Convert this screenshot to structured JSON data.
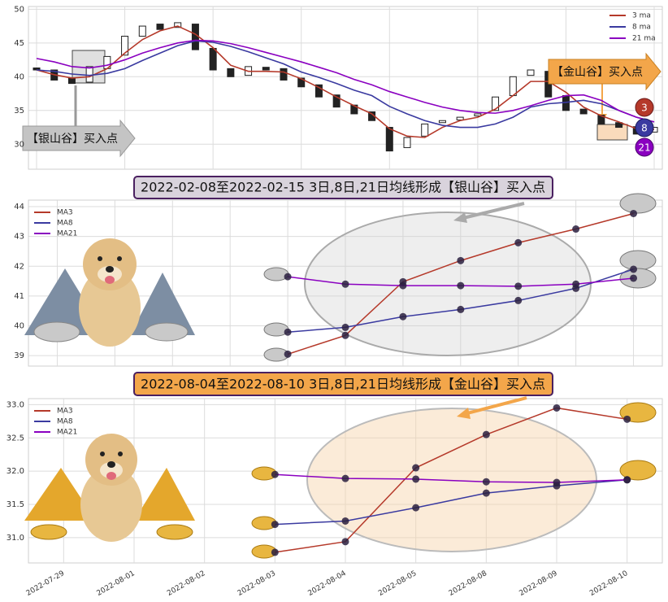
{
  "chart_data": [
    {
      "type": "candlestick",
      "open": [
        41.3,
        41,
        39.8,
        39.2,
        41.2,
        43.2,
        46,
        47.8,
        47.3,
        47.8,
        44.2,
        41.2,
        40.2,
        41.4,
        41.2,
        39.8,
        38.8,
        37.3,
        35.8,
        34.8,
        32.5,
        29.5,
        31.2,
        33.2,
        33.6,
        34.2,
        35,
        37.2,
        40.2,
        40.8,
        37.2,
        35.2,
        34.3,
        33.2,
        32.6,
        31.8
      ],
      "close": [
        41,
        39.5,
        39,
        41.5,
        43,
        46,
        47.5,
        47,
        48,
        44,
        41,
        40,
        41.5,
        41,
        39.5,
        38.5,
        37,
        35.5,
        34.5,
        33.5,
        29,
        31,
        33,
        33.5,
        34,
        34.5,
        37,
        40,
        41,
        37,
        35,
        34.5,
        33,
        32.5,
        31.5,
        32.5
      ],
      "series": [
        {
          "name": "3 ma",
          "color": "#b5392a",
          "values": [
            41,
            40.3,
            39.8,
            40,
            41.2,
            43.5,
            45.5,
            46.8,
            47.5,
            46.3,
            44.3,
            41.7,
            40.8,
            40.8,
            40.7,
            39.7,
            38.4,
            37,
            35.7,
            34.5,
            32.3,
            31.2,
            31,
            32.5,
            33.5,
            34,
            35.2,
            37.2,
            39.3,
            39.3,
            37.7,
            35.5,
            34.2,
            33.3,
            32.3,
            32.2
          ]
        },
        {
          "name": "8 ma",
          "color": "#3a3aa0",
          "values": [
            41,
            40.8,
            40.4,
            40.2,
            40.5,
            41.2,
            42.4,
            43.5,
            44.6,
            45.3,
            45.1,
            44.5,
            43.7,
            42.8,
            41.9,
            40.7,
            39.9,
            39,
            38,
            37.2,
            35.6,
            34.5,
            33.5,
            32.8,
            32.5,
            32.5,
            33,
            34,
            35.5,
            36,
            36.2,
            36.5,
            36,
            35,
            34,
            33.3
          ]
        },
        {
          "name": "21 ma",
          "color": "#8a00c0",
          "values": [
            42.7,
            42.2,
            41.5,
            41.3,
            41.7,
            42.5,
            43.5,
            44.3,
            45,
            45.4,
            45.3,
            44.9,
            44.3,
            43.6,
            42.9,
            42.2,
            41.4,
            40.6,
            39.6,
            38.8,
            37.8,
            37,
            36.2,
            35.5,
            35,
            34.7,
            34.6,
            35,
            35.7,
            36.5,
            37.2,
            37.3,
            36.5,
            35,
            34,
            33.3
          ]
        }
      ],
      "up_color": "#ffffff",
      "down_color": "#222222",
      "ylim": [
        26.3,
        50.4
      ],
      "yticks": [
        30,
        35,
        40,
        45,
        50
      ],
      "grid": true,
      "annotations": [
        "【银山谷】买入点",
        "【金山谷】买入点"
      ],
      "badges": [
        "3",
        "8",
        "21"
      ]
    },
    {
      "type": "line",
      "title": "2022-02-08至2022-02-15 3日,8日,21日均线形成【银山谷】买入点",
      "categories": [
        null,
        null,
        null,
        null,
        null,
        null,
        null,
        null,
        null,
        null,
        null
      ],
      "series": [
        {
          "name": "MA3",
          "color": "#b5392a",
          "values": [
            null,
            null,
            null,
            null,
            39.05,
            39.68,
            41.48,
            42.19,
            42.79,
            43.25,
            43.77
          ]
        },
        {
          "name": "MA8",
          "color": "#3a3aa0",
          "values": [
            null,
            null,
            null,
            null,
            39.79,
            39.95,
            40.31,
            40.55,
            40.85,
            41.26,
            41.9
          ]
        },
        {
          "name": "MA21",
          "color": "#8a00c0",
          "values": [
            null,
            null,
            null,
            null,
            41.65,
            41.4,
            41.35,
            41.35,
            41.33,
            41.4,
            41.6
          ]
        }
      ],
      "ylim": [
        38.65,
        44.22
      ],
      "yticks": [
        39,
        40,
        41,
        42,
        43,
        44
      ],
      "grid": true
    },
    {
      "type": "line",
      "title": "2022-08-04至2022-08-10 3日,8日,21日均线形成【金山谷】买入点",
      "categories": [
        "2022-07-29",
        "2022-08-01",
        "2022-08-02",
        "2022-08-03",
        "2022-08-04",
        "2022-08-05",
        "2022-08-08",
        "2022-08-09",
        "2022-08-10"
      ],
      "series": [
        {
          "name": "MA3",
          "color": "#b5392a",
          "values": [
            null,
            null,
            null,
            30.78,
            30.94,
            32.05,
            32.55,
            32.95,
            32.78
          ]
        },
        {
          "name": "MA8",
          "color": "#3a3aa0",
          "values": [
            null,
            null,
            null,
            31.2,
            31.25,
            31.45,
            31.67,
            31.78,
            31.87
          ]
        },
        {
          "name": "MA21",
          "color": "#8a00c0",
          "values": [
            null,
            null,
            null,
            31.95,
            31.89,
            31.88,
            31.84,
            31.83,
            31.87
          ]
        }
      ],
      "ylim": [
        30.62,
        33.09
      ],
      "yticks": [
        {
          "value": 31,
          "label": "31.0"
        },
        {
          "value": 31.5,
          "label": "31.5"
        },
        {
          "value": 32,
          "label": "32.0"
        },
        {
          "value": 32.5,
          "label": "32.5"
        },
        {
          "value": 33,
          "label": "33.0"
        }
      ],
      "grid": true
    }
  ]
}
